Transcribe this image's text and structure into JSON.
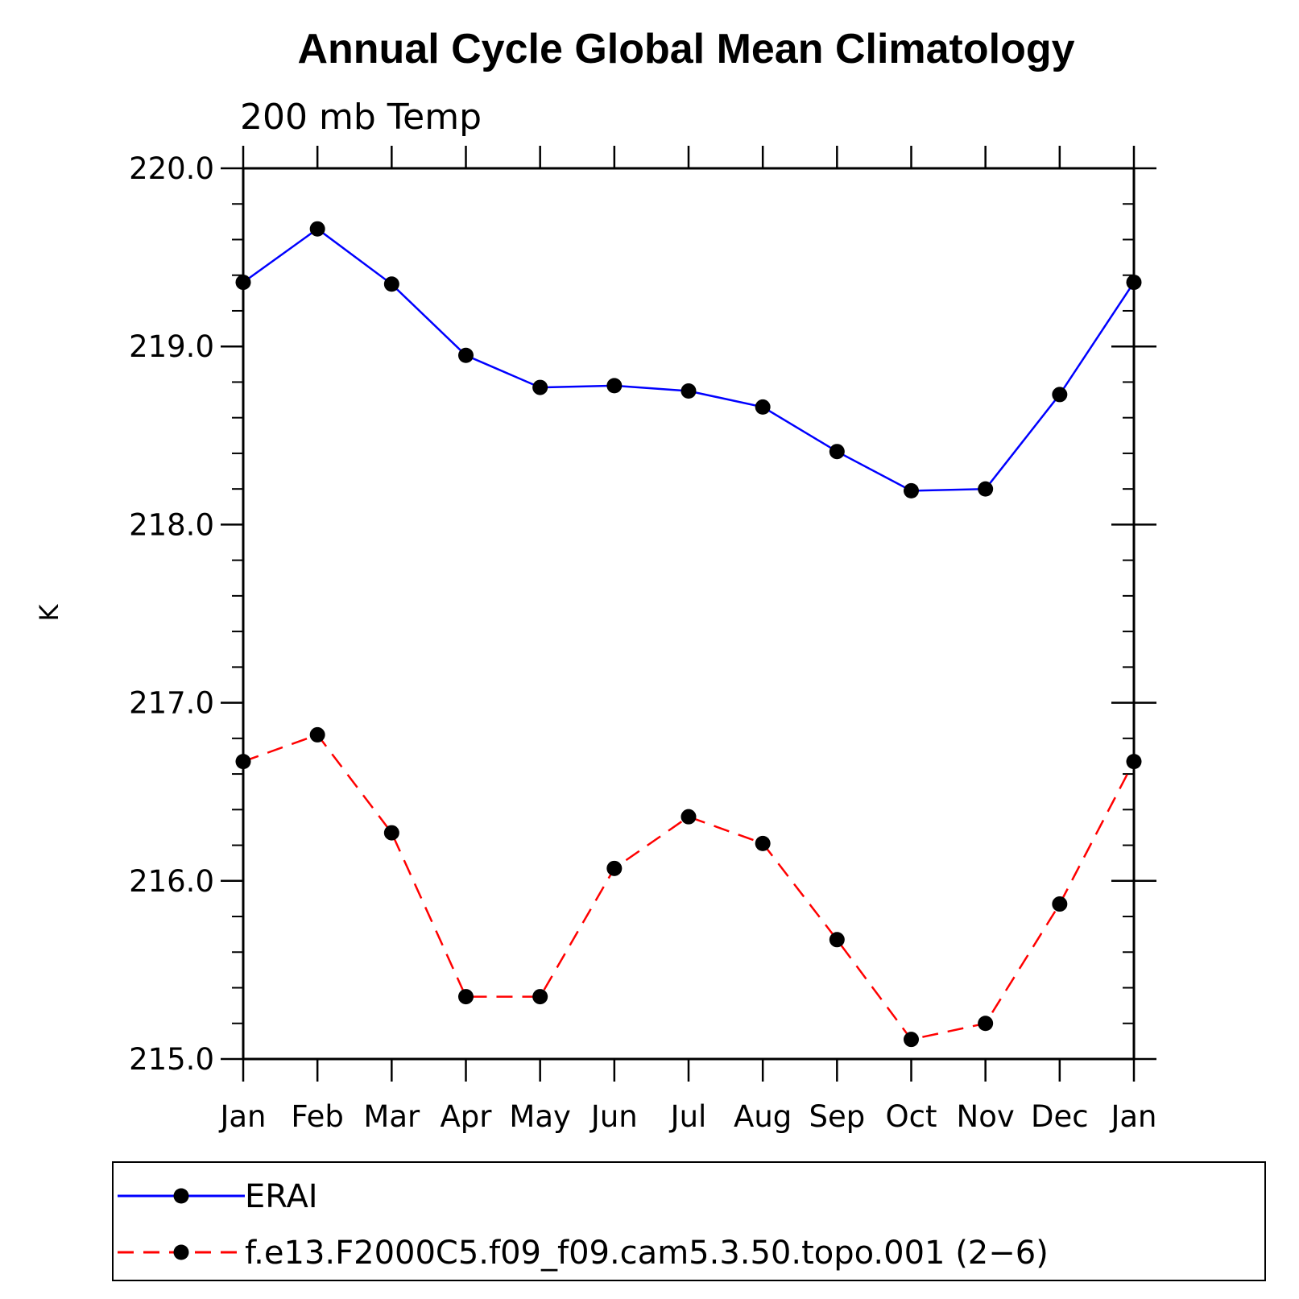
{
  "chart_data": {
    "type": "line",
    "title": "Annual Cycle Global Mean Climatology",
    "subtitle": "200 mb Temp",
    "xlabel": "",
    "ylabel": "K",
    "categories": [
      "Jan",
      "Feb",
      "Mar",
      "Apr",
      "May",
      "Jun",
      "Jul",
      "Aug",
      "Sep",
      "Oct",
      "Nov",
      "Dec",
      "Jan"
    ],
    "ylim": [
      215.0,
      220.0
    ],
    "yticks": [
      "215.0",
      "216.0",
      "217.0",
      "218.0",
      "219.0",
      "220.0"
    ],
    "grid": false,
    "legend_position": "bottom",
    "series": [
      {
        "name": "ERAI",
        "color": "#0000ff",
        "line_style": "solid",
        "marker": "circle",
        "values": [
          219.36,
          219.66,
          219.35,
          218.95,
          218.77,
          218.78,
          218.75,
          218.66,
          218.41,
          218.19,
          218.2,
          218.73,
          219.36
        ]
      },
      {
        "name": "f.e13.F2000C5.f09_f09.cam5.3.50.topo.001 (2−6)",
        "color": "#ff0000",
        "line_style": "dashed",
        "marker": "circle",
        "values": [
          216.67,
          216.82,
          216.27,
          215.35,
          215.35,
          216.07,
          216.36,
          216.21,
          215.67,
          215.11,
          215.2,
          215.87,
          216.67
        ]
      }
    ]
  }
}
